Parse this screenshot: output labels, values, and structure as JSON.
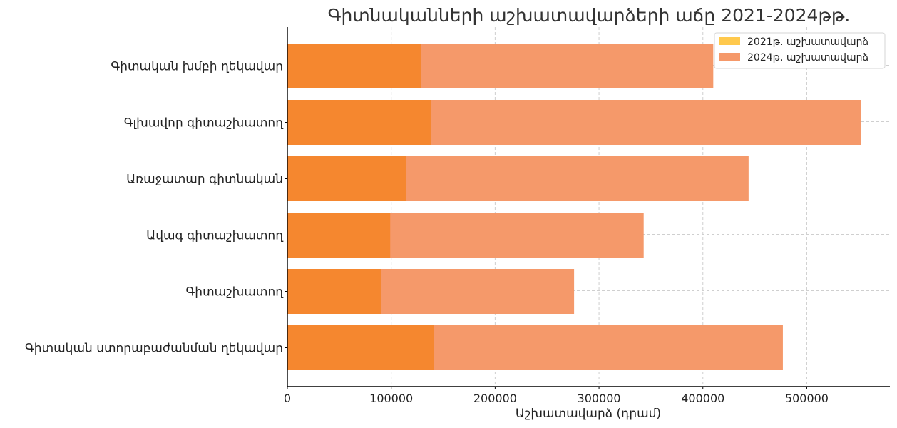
{
  "chart_data": {
    "type": "bar",
    "orientation": "horizontal",
    "title": "Գիտնականների աշխատավարձերի աճը 2021-2024թթ.",
    "xlabel": "Աշխատավարձ (դրամ)",
    "ylabel": "",
    "categories": [
      "Գիտական խմբի ղեկավար",
      "Գլխավոր գիտաշխատող",
      "Առաջատար գիտնական",
      "Ավագ գիտաշխատող",
      "Գիտաշխատող",
      "Գիտական ստորաբաժանման ղեկավար"
    ],
    "series": [
      {
        "name": "2021թ. աշխատավարձ",
        "color": "#FFC94D",
        "values": [
          129000,
          138000,
          114000,
          99000,
          90000,
          141000
        ]
      },
      {
        "name": "2024թ. աշխատավարձ",
        "color": "#F5996A",
        "values": [
          410000,
          552000,
          444000,
          343000,
          276000,
          477000
        ]
      }
    ],
    "overlap_color": "#F5872F",
    "xlim": [
      0,
      580000
    ],
    "xticks": [
      0,
      100000,
      200000,
      300000,
      400000,
      500000
    ],
    "xtick_labels": [
      "0",
      "100000",
      "200000",
      "300000",
      "400000",
      "500000"
    ],
    "grid": true,
    "legend_position": "top-right"
  }
}
